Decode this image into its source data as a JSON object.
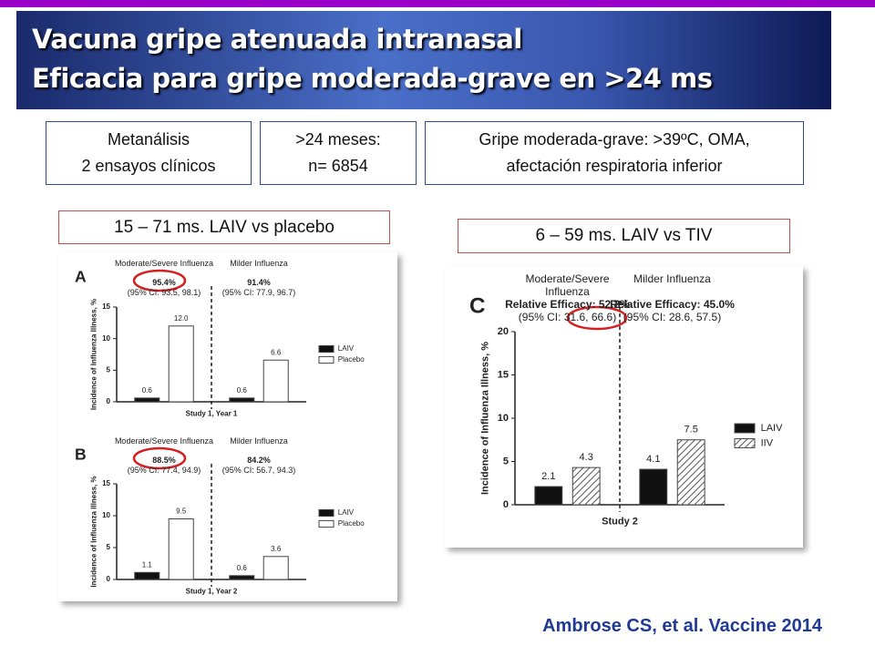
{
  "header": {
    "title_line1": "Vacuna gripe atenuada intranasal",
    "title_line2": "Eficacia para gripe moderada-grave en >24 ms"
  },
  "info_boxes": [
    {
      "line1": "Metanálisis",
      "line2": "2 ensayos clínicos"
    },
    {
      "line1": ">24 meses:",
      "line2": "n= 6854"
    },
    {
      "line1": "Gripe moderada-grave: >39ºC, OMA,",
      "line2": "afectación respiratoria inferior"
    }
  ],
  "panel_labels": [
    "15 – 71 ms. LAIV vs placebo",
    "6 – 59 ms. LAIV vs TIV"
  ],
  "citation": "Ambrose CS, et al. Vaccine 2014",
  "chart_data": [
    {
      "type": "bar",
      "title": "A",
      "ylabel": "Incidence of Influenza Illness, %",
      "xlabel": "Study 1, Year 1",
      "categories": [
        "Moderate/Severe Influenza",
        "Milder Influenza"
      ],
      "efficacy": [
        "95.4%",
        "91.4%"
      ],
      "ci": [
        "(95% CI: 93.5, 98.1)",
        "(95% CI: 77.9, 96.7)"
      ],
      "series": [
        {
          "name": "LAIV",
          "color": "#111111",
          "values": [
            0.6,
            0.6
          ]
        },
        {
          "name": "Placebo",
          "color": "#ffffff",
          "values": [
            12,
            6.6
          ],
          "value_labels": [
            "12.0",
            "6.6"
          ]
        }
      ],
      "ylim": [
        0,
        15
      ],
      "yticks": [
        0,
        5,
        10,
        15
      ]
    },
    {
      "type": "bar",
      "title": "B",
      "ylabel": "Incidence of Influenza Illness, %",
      "xlabel": "Study 1, Year 2",
      "categories": [
        "Moderate/Severe Influenza",
        "Milder Influenza"
      ],
      "efficacy": [
        "88.5%",
        "84.2%"
      ],
      "ci": [
        "(95% CI: 77.4, 94.9)",
        "(95% CI: 56.7, 94.3)"
      ],
      "series": [
        {
          "name": "LAIV",
          "color": "#111111",
          "values": [
            1.1,
            0.6
          ]
        },
        {
          "name": "Placebo",
          "color": "#ffffff",
          "values": [
            9.5,
            3.6
          ]
        }
      ],
      "ylim": [
        0,
        15
      ],
      "yticks": [
        0,
        5,
        10,
        15
      ]
    },
    {
      "type": "bar",
      "title": "C",
      "ylabel": "Incidence of Influenza Illness, %",
      "xlabel": "Study 2",
      "categories": [
        "Moderate/Severe Influenza",
        "Milder Influenza"
      ],
      "efficacy": [
        "Relative Efficacy: 52.2%",
        "Relative Efficacy: 45.0%"
      ],
      "ci": [
        "(95% CI: 31.6, 66.6)",
        "(95% CI: 28.6, 57.5)"
      ],
      "series": [
        {
          "name": "LAIV",
          "color": "#111111",
          "values": [
            2.1,
            4.1
          ]
        },
        {
          "name": "IIV",
          "color": "#888888",
          "hatched": true,
          "values": [
            4.3,
            7.5
          ]
        }
      ],
      "ylim": [
        0,
        20
      ],
      "yticks": [
        0,
        5,
        10,
        15,
        20
      ]
    }
  ]
}
